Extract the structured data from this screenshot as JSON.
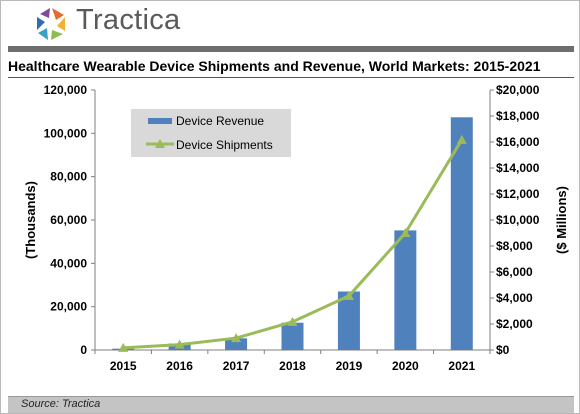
{
  "brand": {
    "name": "Tractica",
    "icon": "tractica-logo-icon"
  },
  "source": "Source: Tractica",
  "chart_data": {
    "type": "bar",
    "title": "Healthcare Wearable Device Shipments and Revenue, World Markets: 2015-2021",
    "categories": [
      "2015",
      "2016",
      "2017",
      "2018",
      "2019",
      "2020",
      "2021"
    ],
    "series": [
      {
        "name": "Device Revenue",
        "type": "bar",
        "axis": "right",
        "color": "#4f81bd",
        "values": [
          100,
          500,
          900,
          2100,
          4500,
          9200,
          17900
        ]
      },
      {
        "name": "Device Shipments",
        "type": "line",
        "axis": "left",
        "color": "#9bbb59",
        "values": [
          1000,
          2500,
          5500,
          13000,
          25000,
          54000,
          97000
        ]
      }
    ],
    "left_axis": {
      "label": "(Thousands)",
      "ylim": [
        0,
        120000
      ],
      "ticks": [
        "0",
        "20,000",
        "40,000",
        "60,000",
        "80,000",
        "100,000",
        "120,000"
      ]
    },
    "right_axis": {
      "label": "($ Millions)",
      "ylim": [
        0,
        20000
      ],
      "ticks": [
        "$0",
        "$2,000",
        "$4,000",
        "$6,000",
        "$8,000",
        "$10,000",
        "$12,000",
        "$14,000",
        "$16,000",
        "$18,000",
        "$20,000"
      ]
    },
    "legend": {
      "placement": "top-left",
      "background": "#d9d9d9"
    },
    "grid": false
  }
}
